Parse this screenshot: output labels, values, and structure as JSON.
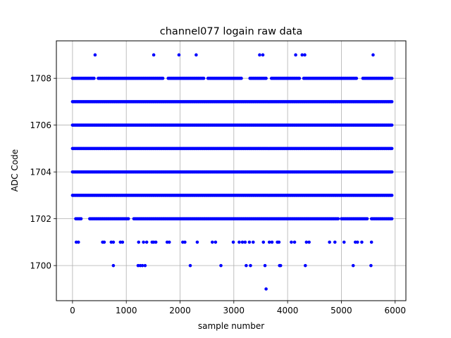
{
  "chart_data": {
    "type": "scatter",
    "title": "channel077 logain raw data",
    "xlabel": "sample number",
    "ylabel": "ADC Code",
    "xlim": [
      -300,
      6200
    ],
    "ylim": [
      1698.5,
      1709.6
    ],
    "x_ticks": [
      0,
      1000,
      2000,
      3000,
      4000,
      5000,
      6000
    ],
    "y_ticks": [
      1700,
      1702,
      1704,
      1706,
      1708
    ],
    "grid": true,
    "marker_color": "#0000ff",
    "x_max_sample": 5940,
    "dense_levels": [
      1702,
      1703,
      1704,
      1705,
      1706,
      1707,
      1708
    ],
    "dense_level_gaps": {
      "1702": [
        [
          0,
          40
        ],
        [
          180,
          300
        ],
        [
          1050,
          1120
        ],
        [
          4950,
          4990
        ],
        [
          5490,
          5540
        ]
      ],
      "1708": [
        [
          420,
          470
        ],
        [
          1700,
          1760
        ],
        [
          2460,
          2510
        ],
        [
          3150,
          3290
        ],
        [
          3620,
          3690
        ],
        [
          4230,
          4290
        ],
        [
          5300,
          5380
        ]
      ]
    },
    "sparse_points": {
      "1709": [
        420,
        1510,
        1980,
        2300,
        3480,
        3540,
        4150,
        4270,
        4320,
        5590
      ],
      "1701": [
        70,
        110,
        560,
        590,
        720,
        760,
        890,
        930,
        1230,
        1320,
        1380,
        1480,
        1510,
        1550,
        1760,
        1800,
        2050,
        2090,
        2320,
        2600,
        2660,
        2990,
        3100,
        3160,
        3210,
        3290,
        3360,
        3550,
        3660,
        3710,
        3810,
        3840,
        4070,
        4130,
        4350,
        4400,
        4780,
        4880,
        5050,
        5260,
        5300,
        5380,
        5560
      ],
      "1700": [
        760,
        1220,
        1260,
        1300,
        1350,
        2190,
        2760,
        3230,
        3310,
        3580,
        3850,
        3870,
        4330,
        5220,
        5550
      ],
      "1699": [
        3600
      ]
    }
  }
}
